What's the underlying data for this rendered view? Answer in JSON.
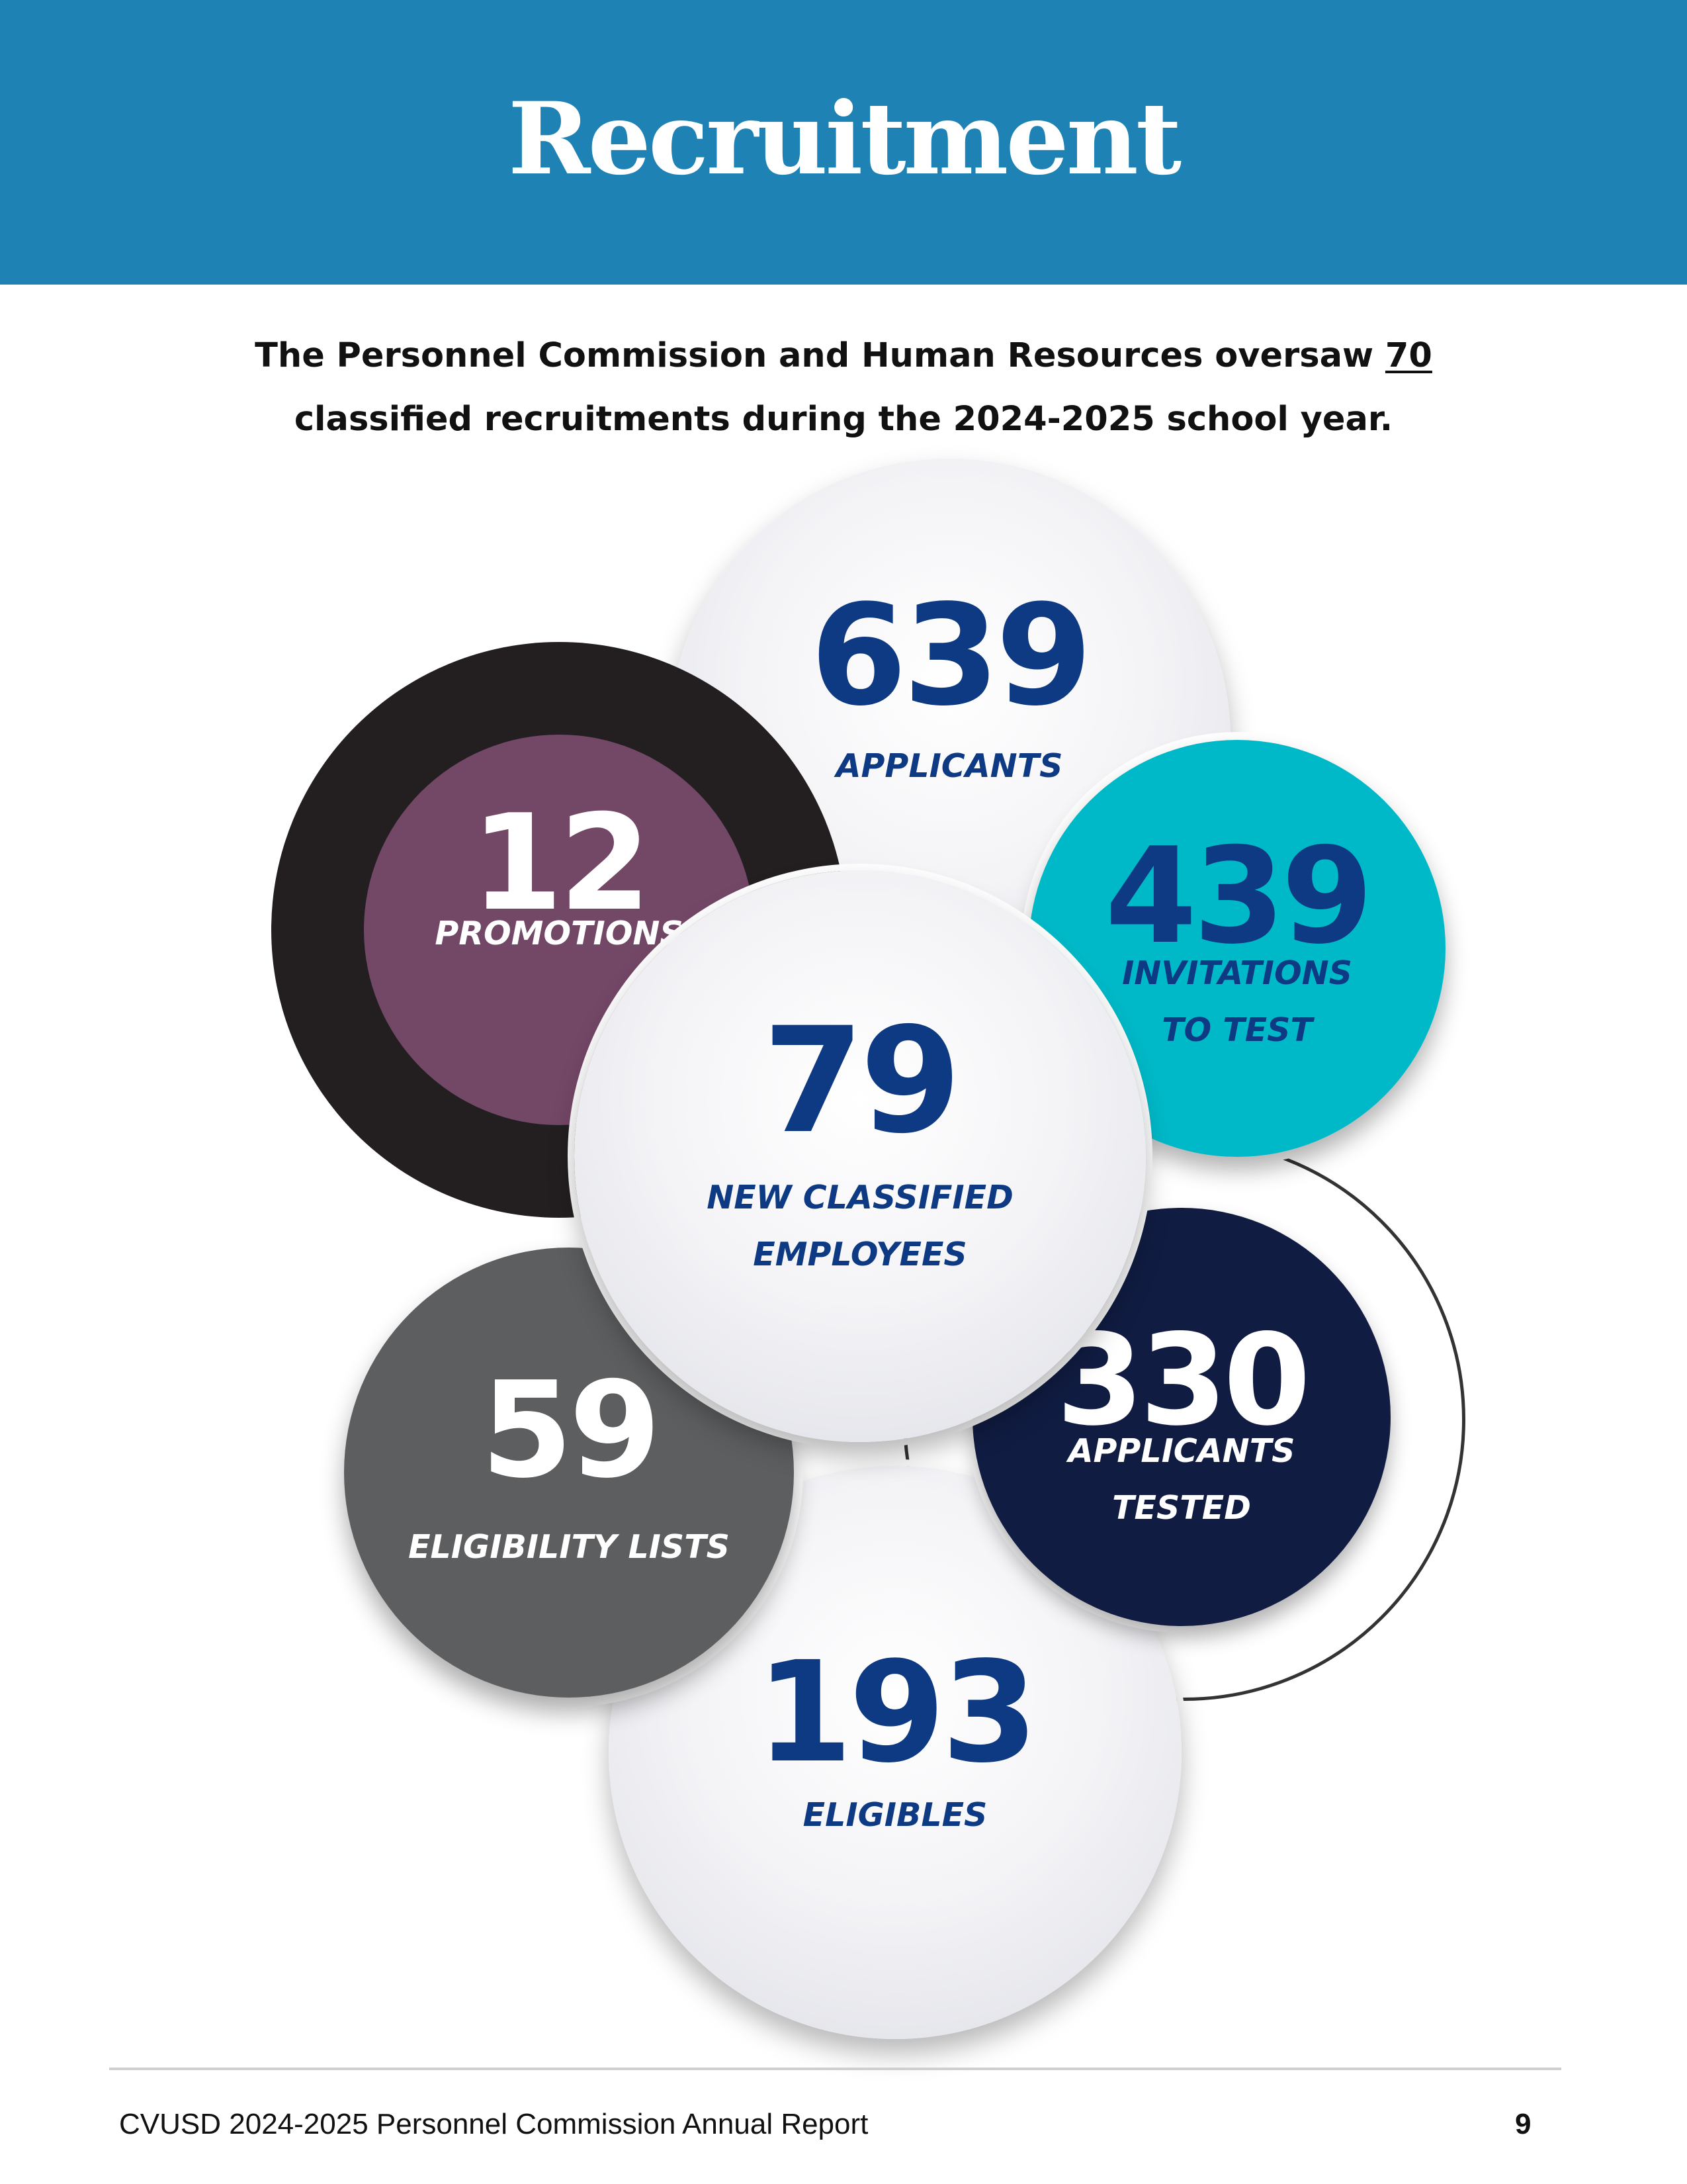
{
  "header": {
    "title": "Recruitment",
    "band_color": "#1e82b4"
  },
  "intro": {
    "line1_prefix": "The Personnel Commission and Human Resources oversaw ",
    "line1_value": "70",
    "line2": "classified recruitments during the 2024-2025 school year."
  },
  "stats": {
    "applicants": {
      "value": "639",
      "label": "APPLICANTS"
    },
    "promotions": {
      "value": "12",
      "label": "PROMOTIONS"
    },
    "invitations": {
      "value": "439",
      "label_line1": "INVITATIONS",
      "label_line2": "TO TEST"
    },
    "new_employees": {
      "value": "79",
      "label_line1": "NEW CLASSIFIED",
      "label_line2": "EMPLOYEES"
    },
    "tested": {
      "value": "330",
      "label_line1": "APPLICANTS",
      "label_line2": "TESTED"
    },
    "eligibility_lists": {
      "value": "59",
      "label": "ELIGIBILITY LISTS"
    },
    "eligibles": {
      "value": "193",
      "label": "ELIGIBLES"
    }
  },
  "colors": {
    "number_blue": "#0e3a83",
    "promotions_inner": "#734766",
    "promotions_outer": "#231f20",
    "invitations": "#00b9c8",
    "tested": "#101c42",
    "eligibility_lists": "#5d5e60"
  },
  "footer": {
    "report_title": "CVUSD 2024-2025 Personnel Commission Annual Report",
    "page_number": "9"
  }
}
